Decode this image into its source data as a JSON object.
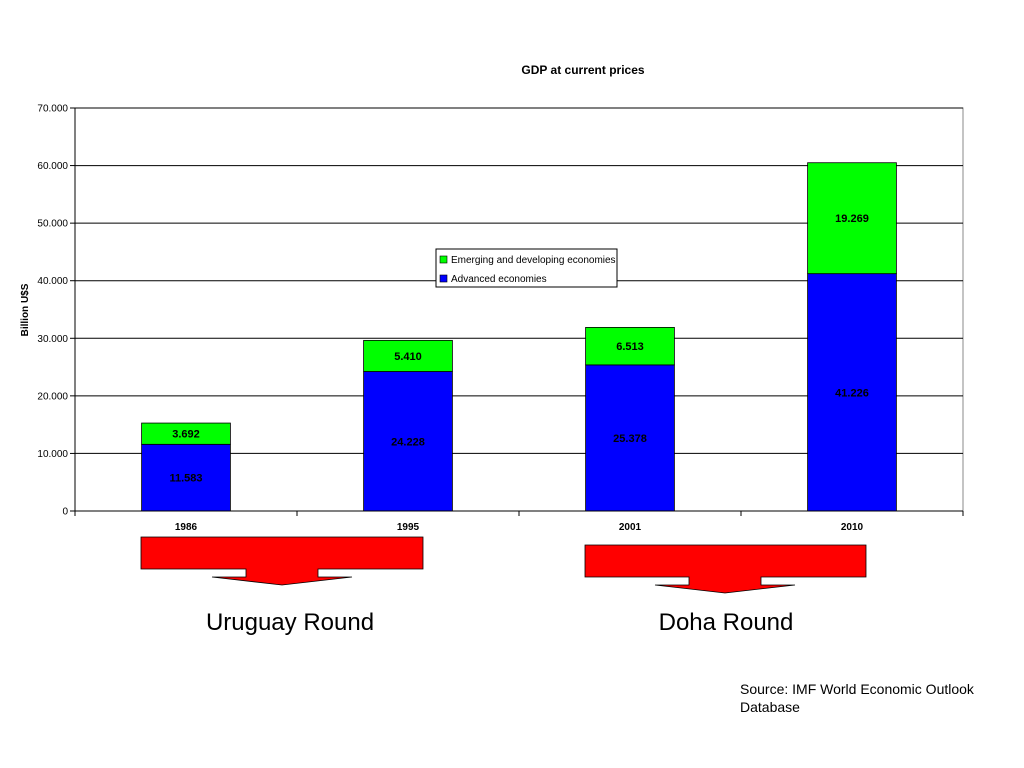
{
  "chart_data": {
    "type": "bar",
    "stacked": true,
    "title": "GDP at current prices",
    "ylabel": "Billion U$S",
    "xlabel": "",
    "categories": [
      "1986",
      "1995",
      "2001",
      "2010"
    ],
    "series": [
      {
        "name": "Advanced economies",
        "color": "#0000FF",
        "values": [
          11.583,
          24.228,
          25.378,
          41.226
        ],
        "labels": [
          "11.583",
          "24.228",
          "25.378",
          "41.226"
        ]
      },
      {
        "name": "Emerging and developing economies",
        "color": "#00FF00",
        "values": [
          3.692,
          5.41,
          6.513,
          19.269
        ],
        "labels": [
          "3.692",
          "5.410",
          "6.513",
          "19.269"
        ]
      }
    ],
    "ylim": [
      0,
      70
    ],
    "yticks": [
      0,
      10,
      20,
      30,
      40,
      50,
      60,
      70
    ],
    "ytick_labels": [
      "0",
      "10.000",
      "20.000",
      "30.000",
      "40.000",
      "50.000",
      "60.000",
      "70.000"
    ],
    "grid": true,
    "legend_position": "center"
  },
  "annotations": {
    "arrows": [
      {
        "label": "Uruguay Round",
        "color": "#FF0000"
      },
      {
        "label": "Doha Round",
        "color": "#FF0000"
      }
    ],
    "source": "Source: IMF World Economic Outlook Database"
  }
}
